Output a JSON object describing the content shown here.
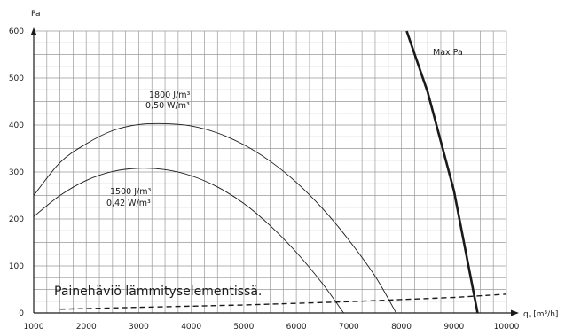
{
  "chart_data": {
    "type": "line",
    "ylabel": "Pa",
    "xlabel": "q",
    "xlabel_sub": "v",
    "xlabel_unit": "[m³/h]",
    "xlim": [
      1000,
      10000
    ],
    "ylim": [
      0,
      600
    ],
    "x_ticks": [
      1000,
      2000,
      3000,
      4000,
      5000,
      6000,
      7000,
      8000,
      9000,
      10000
    ],
    "y_ticks": [
      0,
      100,
      200,
      300,
      400,
      500,
      600
    ],
    "grid": true,
    "series": [
      {
        "label_lines": [
          "1800 J/m³",
          "0,50 W/m³"
        ],
        "style": "thin",
        "points": [
          [
            1000,
            250
          ],
          [
            1500,
            320
          ],
          [
            2000,
            360
          ],
          [
            2500,
            388
          ],
          [
            3000,
            401
          ],
          [
            3500,
            403
          ],
          [
            4000,
            398
          ],
          [
            4500,
            383
          ],
          [
            5000,
            358
          ],
          [
            5500,
            323
          ],
          [
            6000,
            278
          ],
          [
            6500,
            222
          ],
          [
            7000,
            155
          ],
          [
            7500,
            78
          ],
          [
            7900,
            0
          ]
        ]
      },
      {
        "label_lines": [
          "1500 J/m³",
          "0,42 W/m³"
        ],
        "style": "thin",
        "points": [
          [
            1000,
            205
          ],
          [
            1500,
            250
          ],
          [
            2000,
            282
          ],
          [
            2500,
            301
          ],
          [
            3000,
            308
          ],
          [
            3500,
            305
          ],
          [
            4000,
            292
          ],
          [
            4500,
            268
          ],
          [
            5000,
            233
          ],
          [
            5500,
            186
          ],
          [
            6000,
            129
          ],
          [
            6500,
            62
          ],
          [
            6900,
            0
          ]
        ]
      },
      {
        "name": "Max Pa",
        "style": "bold",
        "points": [
          [
            8100,
            600
          ],
          [
            8500,
            470
          ],
          [
            9000,
            260
          ],
          [
            9450,
            0
          ]
        ]
      },
      {
        "label_lines": [
          "Painehäviö lämmityselementissä."
        ],
        "style": "dashed",
        "points": [
          [
            1500,
            8
          ],
          [
            3000,
            12
          ],
          [
            5000,
            17
          ],
          [
            7000,
            24
          ],
          [
            9000,
            33
          ],
          [
            10000,
            40
          ]
        ]
      }
    ]
  }
}
